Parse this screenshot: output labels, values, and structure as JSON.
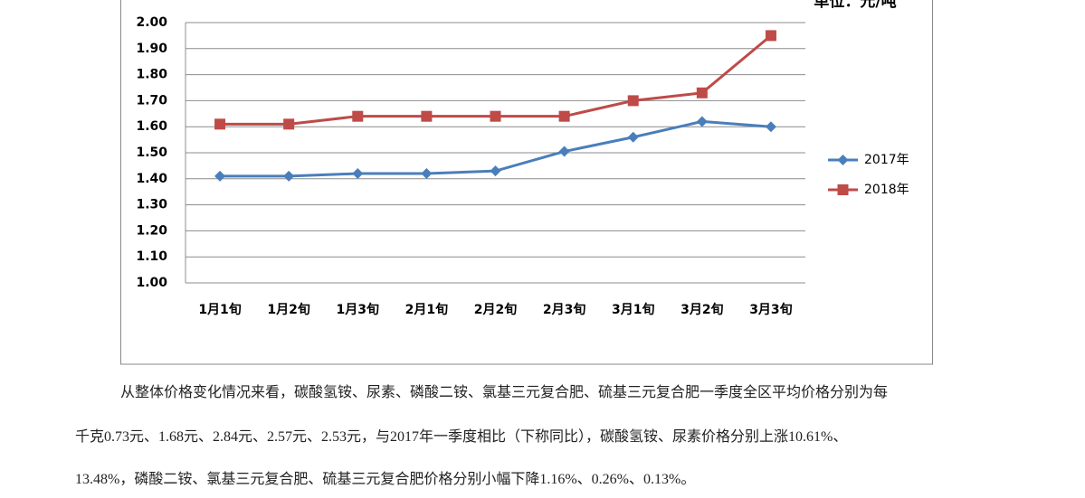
{
  "chart_data": {
    "type": "line",
    "unit": "单位：元/吨",
    "categories": [
      "1月1旬",
      "1月2旬",
      "1月3旬",
      "2月1旬",
      "2月2旬",
      "2月3旬",
      "3月1旬",
      "3月2旬",
      "3月3旬"
    ],
    "series": [
      {
        "name": "2017年",
        "color": "#4a7ebb",
        "marker": "diamond",
        "values": [
          1.41,
          1.41,
          1.42,
          1.42,
          1.43,
          1.505,
          1.56,
          1.62,
          1.6
        ]
      },
      {
        "name": "2018年",
        "color": "#be4b48",
        "marker": "square",
        "values": [
          1.61,
          1.61,
          1.64,
          1.64,
          1.64,
          1.64,
          1.7,
          1.73,
          1.95
        ]
      }
    ],
    "ylim": [
      1.0,
      2.0
    ],
    "yticks": [
      {
        "value": 1.0,
        "label": "1.00"
      },
      {
        "value": 1.1,
        "label": "1.10"
      },
      {
        "value": 1.2,
        "label": "1.20"
      },
      {
        "value": 1.3,
        "label": "1.30"
      },
      {
        "value": 1.4,
        "label": "1.40"
      },
      {
        "value": 1.5,
        "label": "1.50"
      },
      {
        "value": 1.6,
        "label": "1.60"
      },
      {
        "value": 1.7,
        "label": "1.70"
      },
      {
        "value": 1.8,
        "label": "1.80"
      },
      {
        "value": 1.9,
        "label": "1.90"
      },
      {
        "value": 2.0,
        "label": "2.00"
      }
    ],
    "grid": true,
    "legend": "right"
  },
  "document": {
    "paragraph": [
      "从整体价格变化情况来看，碳酸氢铵、尿素、磷酸二铵、氯基三元复合肥、硫基三元复合肥一季度全区平均价格分别为每",
      "千克0.73元、1.68元、2.84元、2.57元、2.53元，与2017年一季度相比（下称同比），碳酸氢铵、尿素价格分别上涨10.61%、",
      "13.48%，磷酸二铵、氯基三元复合肥、硫基三元复合肥价格分别小幅下降1.16%、0.26%、0.13%。"
    ]
  }
}
